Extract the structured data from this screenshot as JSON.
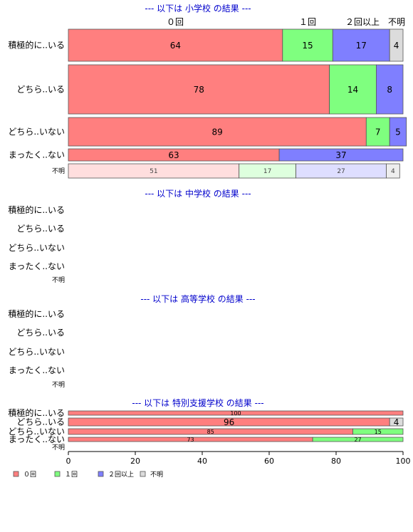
{
  "chart_data": {
    "type": "bar",
    "orientation": "horizontal",
    "stacked": true,
    "xlim": [
      0,
      100
    ],
    "x_ticks": [
      "0",
      "20",
      "40",
      "60",
      "80",
      "100"
    ],
    "legend": {
      "position": "bottom-left",
      "items": [
        {
          "label": "０回",
          "color": "#ff7f7f"
        },
        {
          "label": "１回",
          "color": "#7fff7f"
        },
        {
          "label": "２回以上",
          "color": "#7f7fff"
        },
        {
          "label": "不明",
          "color": "#dcdcdc"
        }
      ]
    },
    "top_column_labels": [
      "０回",
      "１回",
      "２回以上",
      "不明"
    ],
    "colors": {
      "zero": "#ff7f7f",
      "one": "#7fff7f",
      "two_plus": "#7f7fff",
      "unknown": "#dcdcdc",
      "zero_light": "#ffdede",
      "one_light": "#deffde",
      "two_plus_light": "#dedeff",
      "unknown_light": "#eeeeee",
      "title": "#0000cc"
    },
    "panels": [
      {
        "title": "--- 以下は 小学校 の結果 ---",
        "rows": [
          {
            "label": "積極的に..いる",
            "values": [
              64,
              15,
              17,
              4
            ]
          },
          {
            "label": "どちら..いる",
            "values": [
              78,
              14,
              8,
              0
            ]
          },
          {
            "label": "どちら..いない",
            "values": [
              89,
              7,
              5,
              0
            ]
          },
          {
            "label": "まったく..ない",
            "values": [
              63,
              0,
              37,
              0
            ]
          },
          {
            "label": "不明",
            "values": [
              51,
              17,
              27,
              4
            ]
          }
        ]
      },
      {
        "title": "--- 以下は 中学校 の結果 ---",
        "rows": [
          {
            "label": "積極的に..いる",
            "values": []
          },
          {
            "label": "どちら..いる",
            "values": []
          },
          {
            "label": "どちら..いない",
            "values": []
          },
          {
            "label": "まったく..ない",
            "values": []
          },
          {
            "label": "不明",
            "values": []
          }
        ]
      },
      {
        "title": "--- 以下は 高等学校 の結果 ---",
        "rows": [
          {
            "label": "積極的に..いる",
            "values": []
          },
          {
            "label": "どちら..いる",
            "values": []
          },
          {
            "label": "どちら..いない",
            "values": []
          },
          {
            "label": "まったく..ない",
            "values": []
          },
          {
            "label": "不明",
            "values": []
          }
        ]
      },
      {
        "title": "--- 以下は 特別支援学校 の結果 ---",
        "rows": [
          {
            "label": "積極的に..いる",
            "values": [
              100,
              0,
              0,
              0
            ]
          },
          {
            "label": "どちら..いる",
            "values": [
              96,
              0,
              0,
              4
            ]
          },
          {
            "label": "どちら..いない",
            "values": [
              85,
              15,
              0,
              0
            ]
          },
          {
            "label": "まったく..ない",
            "values": [
              73,
              27,
              0,
              0
            ]
          },
          {
            "label": "不明",
            "values": []
          }
        ]
      }
    ]
  }
}
